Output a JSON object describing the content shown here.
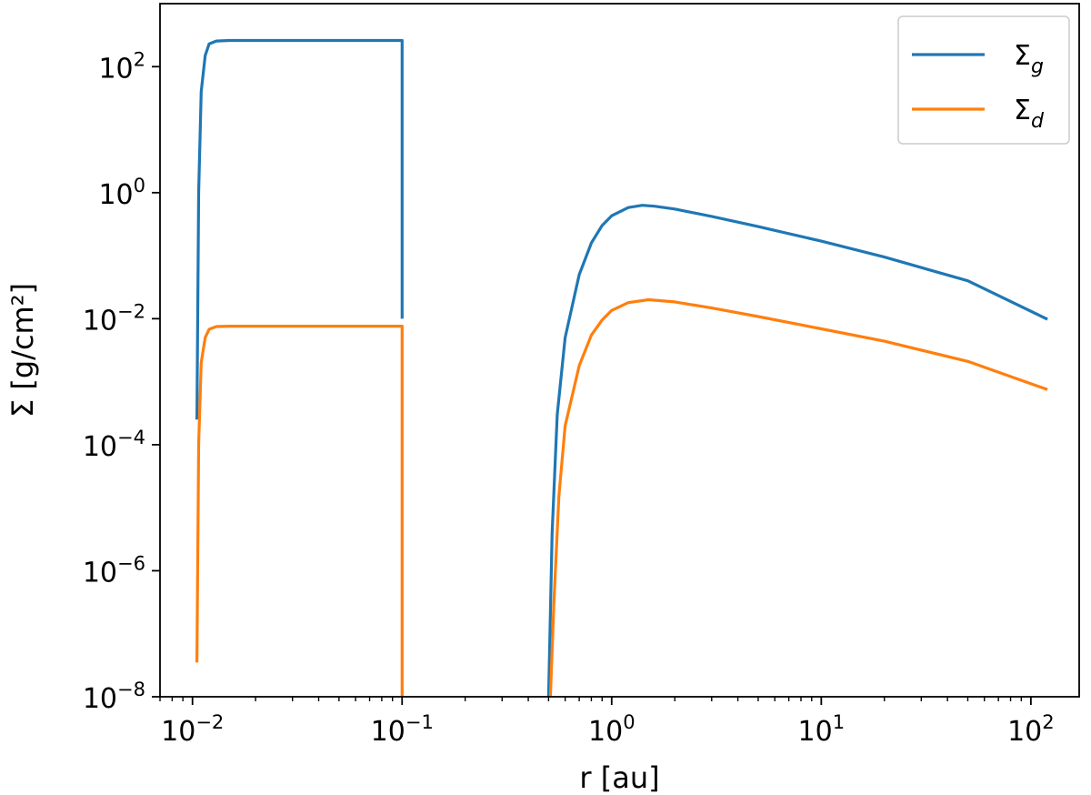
{
  "chart_data": {
    "type": "line",
    "title": "",
    "xlabel": "r [au]",
    "ylabel": "Σ [g/cm²]",
    "xscale": "log",
    "yscale": "log",
    "xlim": [
      0.007,
      170
    ],
    "ylim": [
      1e-08,
      1000
    ],
    "grid": false,
    "legend_position": "top-right",
    "x_ticks": [
      {
        "value": 0.01,
        "base": "10",
        "exp": "−2"
      },
      {
        "value": 0.1,
        "base": "10",
        "exp": "−1"
      },
      {
        "value": 1,
        "base": "10",
        "exp": "0"
      },
      {
        "value": 10,
        "base": "10",
        "exp": "1"
      },
      {
        "value": 100,
        "base": "10",
        "exp": "2"
      }
    ],
    "y_ticks": [
      {
        "value": 100,
        "base": "10",
        "exp": "2"
      },
      {
        "value": 1,
        "base": "10",
        "exp": "0"
      },
      {
        "value": 0.01,
        "base": "10",
        "exp": "−2"
      },
      {
        "value": 0.0001,
        "base": "10",
        "exp": "−4"
      },
      {
        "value": 1e-06,
        "base": "10",
        "exp": "−6"
      },
      {
        "value": 1e-08,
        "base": "10",
        "exp": "−8"
      }
    ],
    "series": [
      {
        "name": "Σ_g",
        "label_main": "Σ",
        "label_sub": "g",
        "color": "#1f77b4",
        "segments": [
          [
            [
              0.0105,
              0.00025
            ],
            [
              0.0107,
              1.0
            ],
            [
              0.011,
              40
            ],
            [
              0.0115,
              150
            ],
            [
              0.012,
              230
            ],
            [
              0.013,
              255
            ],
            [
              0.015,
              260
            ],
            [
              0.1,
              260
            ],
            [
              0.1,
              0.01
            ]
          ],
          [
            [
              0.5,
              1e-08
            ],
            [
              0.52,
              4e-06
            ],
            [
              0.55,
              0.0003
            ],
            [
              0.6,
              0.005
            ],
            [
              0.7,
              0.05
            ],
            [
              0.8,
              0.16
            ],
            [
              0.9,
              0.3
            ],
            [
              1.0,
              0.43
            ],
            [
              1.2,
              0.58
            ],
            [
              1.4,
              0.63
            ],
            [
              1.6,
              0.61
            ],
            [
              2.0,
              0.55
            ],
            [
              3.0,
              0.42
            ],
            [
              5.0,
              0.29
            ],
            [
              10,
              0.17
            ],
            [
              20,
              0.095
            ],
            [
              50,
              0.04
            ],
            [
              120,
              0.0098
            ]
          ]
        ]
      },
      {
        "name": "Σ_d",
        "label_main": "Σ",
        "label_sub": "d",
        "color": "#ff7f0e",
        "segments": [
          [
            [
              0.0105,
              3.5e-08
            ],
            [
              0.0107,
              0.0001
            ],
            [
              0.011,
              0.002
            ],
            [
              0.0115,
              0.005
            ],
            [
              0.012,
              0.0068
            ],
            [
              0.013,
              0.0075
            ],
            [
              0.015,
              0.0076
            ],
            [
              0.1,
              0.0076
            ],
            [
              0.1,
              1e-08
            ]
          ],
          [
            [
              0.51,
              1e-08
            ],
            [
              0.53,
              3e-07
            ],
            [
              0.56,
              1.5e-05
            ],
            [
              0.6,
              0.0002
            ],
            [
              0.7,
              0.0018
            ],
            [
              0.8,
              0.0055
            ],
            [
              0.9,
              0.0095
            ],
            [
              1.0,
              0.0135
            ],
            [
              1.2,
              0.018
            ],
            [
              1.5,
              0.02
            ],
            [
              2.0,
              0.0185
            ],
            [
              3.0,
              0.0148
            ],
            [
              5.0,
              0.0108
            ],
            [
              10,
              0.0069
            ],
            [
              20,
              0.0044
            ],
            [
              50,
              0.0021
            ],
            [
              120,
              0.00075
            ]
          ]
        ]
      }
    ]
  }
}
